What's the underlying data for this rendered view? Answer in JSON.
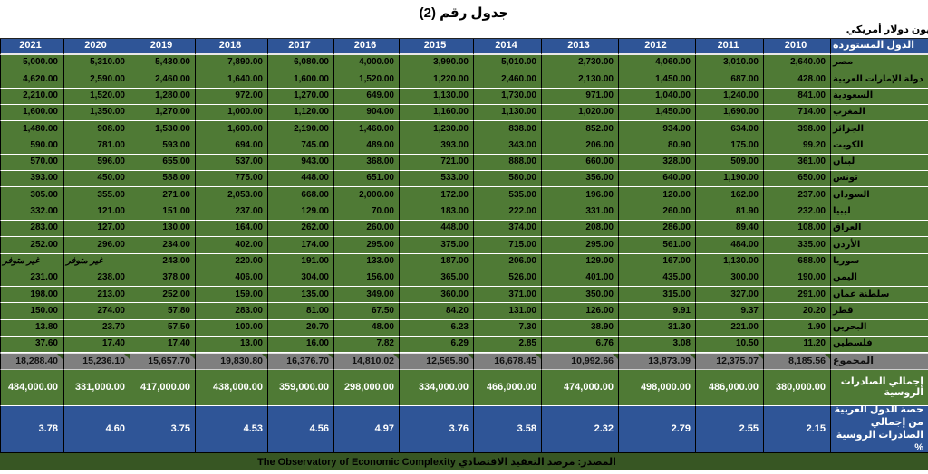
{
  "title": "جدول رقم (2)",
  "subtitle": "مليون دولار أمريكي",
  "table": {
    "years": [
      "2021",
      "2020",
      "2019",
      "2018",
      "2017",
      "2016",
      "2015",
      "2014",
      "2013",
      "2012",
      "2011",
      "2010"
    ],
    "countries_header": "الدول المستوردة",
    "na_text": "غير متوفر",
    "rows": [
      {
        "label": "مصر",
        "values": [
          "5,000.00",
          "5,310.00",
          "5,430.00",
          "7,890.00",
          "6,080.00",
          "4,000.00",
          "3,990.00",
          "5,010.00",
          "2,730.00",
          "4,060.00",
          "3,010.00",
          "2,640.00"
        ]
      },
      {
        "label": "دولة الإمارات العربية",
        "values": [
          "4,620.00",
          "2,590.00",
          "2,460.00",
          "1,640.00",
          "1,600.00",
          "1,520.00",
          "1,220.00",
          "2,460.00",
          "2,130.00",
          "1,450.00",
          "687.00",
          "428.00"
        ]
      },
      {
        "label": "السعودية",
        "values": [
          "2,210.00",
          "1,520.00",
          "1,280.00",
          "972.00",
          "1,270.00",
          "649.00",
          "1,130.00",
          "1,730.00",
          "971.00",
          "1,040.00",
          "1,240.00",
          "841.00"
        ]
      },
      {
        "label": "المغرب",
        "values": [
          "1,600.00",
          "1,350.00",
          "1,270.00",
          "1,000.00",
          "1,120.00",
          "904.00",
          "1,160.00",
          "1,130.00",
          "1,020.00",
          "1,450.00",
          "1,690.00",
          "714.00"
        ]
      },
      {
        "label": "الجزائر",
        "values": [
          "1,480.00",
          "908.00",
          "1,530.00",
          "1,600.00",
          "2,190.00",
          "1,460.00",
          "1,230.00",
          "838.00",
          "852.00",
          "934.00",
          "634.00",
          "398.00"
        ]
      },
      {
        "label": "الكويت",
        "values": [
          "590.00",
          "781.00",
          "593.00",
          "694.00",
          "745.00",
          "489.00",
          "393.00",
          "343.00",
          "206.00",
          "80.90",
          "175.00",
          "99.20"
        ]
      },
      {
        "label": "لبنان",
        "values": [
          "570.00",
          "596.00",
          "655.00",
          "537.00",
          "943.00",
          "368.00",
          "721.00",
          "888.00",
          "660.00",
          "328.00",
          "509.00",
          "361.00"
        ]
      },
      {
        "label": "تونس",
        "values": [
          "393.00",
          "450.00",
          "588.00",
          "775.00",
          "448.00",
          "651.00",
          "533.00",
          "580.00",
          "356.00",
          "640.00",
          "1,190.00",
          "650.00"
        ]
      },
      {
        "label": "السودان",
        "values": [
          "305.00",
          "355.00",
          "271.00",
          "2,053.00",
          "668.00",
          "2,000.00",
          "172.00",
          "535.00",
          "196.00",
          "120.00",
          "162.00",
          "237.00"
        ]
      },
      {
        "label": "ليبيا",
        "values": [
          "332.00",
          "121.00",
          "151.00",
          "237.00",
          "129.00",
          "70.00",
          "183.00",
          "222.00",
          "331.00",
          "260.00",
          "81.90",
          "232.00"
        ]
      },
      {
        "label": "العراق",
        "values": [
          "283.00",
          "127.00",
          "130.00",
          "164.00",
          "262.00",
          "260.00",
          "448.00",
          "374.00",
          "208.00",
          "286.00",
          "89.40",
          "108.00"
        ]
      },
      {
        "label": "الأردن",
        "values": [
          "252.00",
          "296.00",
          "234.00",
          "402.00",
          "174.00",
          "295.00",
          "375.00",
          "715.00",
          "295.00",
          "561.00",
          "484.00",
          "335.00"
        ]
      },
      {
        "label": "سوريا",
        "values": [
          "غير متوفر",
          "غير متوفر",
          "243.00",
          "220.00",
          "191.00",
          "133.00",
          "187.00",
          "206.00",
          "129.00",
          "167.00",
          "1,130.00",
          "688.00"
        ]
      },
      {
        "label": "اليمن",
        "values": [
          "231.00",
          "238.00",
          "378.00",
          "406.00",
          "304.00",
          "156.00",
          "365.00",
          "526.00",
          "401.00",
          "435.00",
          "300.00",
          "190.00"
        ]
      },
      {
        "label": "سلطنة عمان",
        "values": [
          "198.00",
          "213.00",
          "252.00",
          "159.00",
          "135.00",
          "349.00",
          "360.00",
          "371.00",
          "350.00",
          "315.00",
          "327.00",
          "291.00"
        ]
      },
      {
        "label": "قطر",
        "values": [
          "150.00",
          "274.00",
          "57.80",
          "283.00",
          "81.00",
          "67.50",
          "84.20",
          "131.00",
          "126.00",
          "9.91",
          "9.37",
          "20.20"
        ]
      },
      {
        "label": "البحرين",
        "values": [
          "13.80",
          "23.70",
          "57.50",
          "100.00",
          "20.70",
          "48.00",
          "6.23",
          "7.30",
          "38.90",
          "31.30",
          "221.00",
          "1.90"
        ]
      },
      {
        "label": "فلسطين",
        "values": [
          "37.60",
          "17.40",
          "17.40",
          "13.00",
          "16.00",
          "7.82",
          "6.29",
          "2.85",
          "6.76",
          "3.08",
          "10.50",
          "11.20"
        ]
      }
    ],
    "total": {
      "label": "المجموع",
      "values": [
        "18,288.40",
        "15,236.10",
        "15,657.70",
        "19,830.80",
        "16,376.70",
        "14,810.02",
        "12,565.80",
        "16,678.45",
        "10,992.66",
        "13,873.09",
        "12,375.07",
        "8,185.56"
      ]
    },
    "russian_exports": {
      "label": "إجمالي الصادرات الروسية",
      "values": [
        "484,000.00",
        "331,000.00",
        "417,000.00",
        "438,000.00",
        "359,000.00",
        "298,000.00",
        "334,000.00",
        "466,000.00",
        "474,000.00",
        "498,000.00",
        "486,000.00",
        "380,000.00"
      ]
    },
    "arab_share": {
      "label": "حصة الدول العربية من إجمالي الصادرات الروسية %",
      "values": [
        "3.78",
        "4.60",
        "3.75",
        "4.53",
        "4.56",
        "4.97",
        "3.76",
        "3.58",
        "2.32",
        "2.79",
        "2.55",
        "2.15"
      ]
    }
  },
  "source": "المصدر: مرصد التعقيد الاقتصادي The Observatory of Economic Complexity",
  "colors": {
    "header_blue": "#2F5597",
    "cell_green": "#4F7A35",
    "total_gray": "#7F7F7F",
    "share_blue": "#2F5597",
    "source_dark_green": "#375623",
    "triangle_green": "#375623"
  }
}
